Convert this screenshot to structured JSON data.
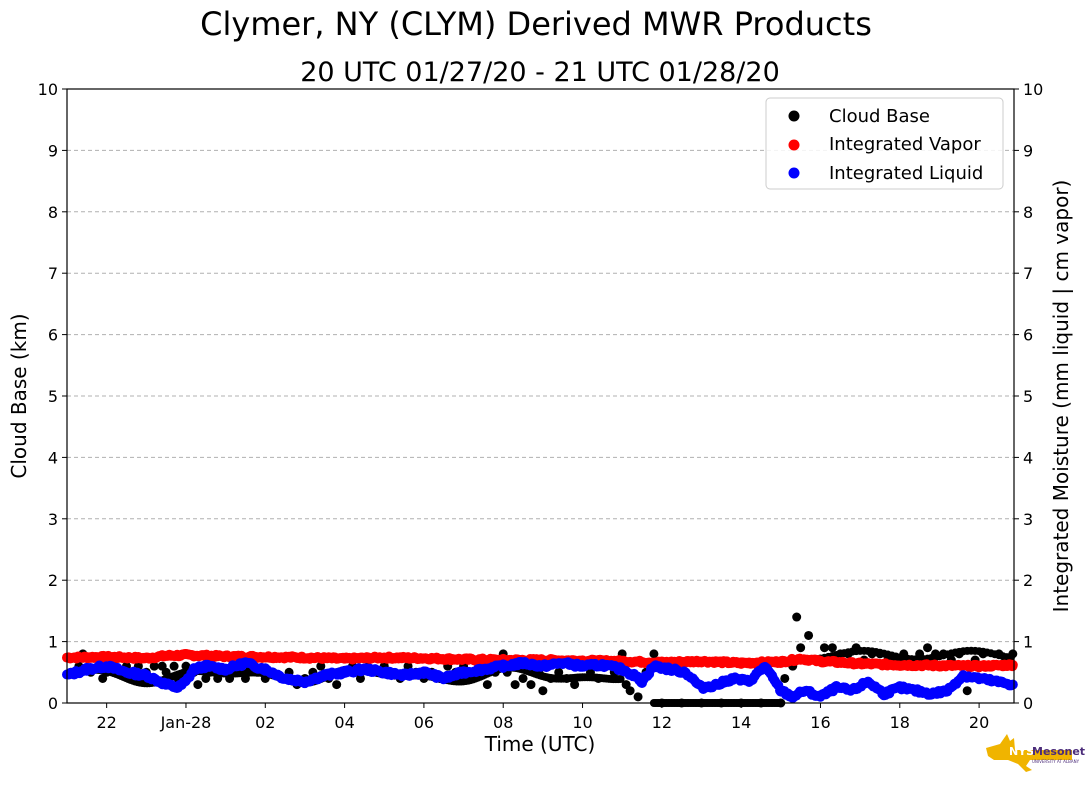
{
  "chart_data": {
    "type": "scatter",
    "title": "Clymer, NY (CLYM) Derived MWR Products",
    "subtitle": "20 UTC 01/27/20 - 21 UTC 01/28/20",
    "xlabel": "Time (UTC)",
    "ylabel": "Cloud Base (km)",
    "ylabel_right": "Integrated Moisture (mm liquid | cm vapor)",
    "xlim": [
      "2020-01-27T21:00Z",
      "2020-01-28T20:53Z"
    ],
    "ylim": [
      0,
      10
    ],
    "ylim_right": [
      0,
      10
    ],
    "x_tick_labels": [
      "22",
      "Jan-28",
      "02",
      "04",
      "06",
      "08",
      "10",
      "12",
      "14",
      "16",
      "18",
      "20"
    ],
    "y_tick_labels": [
      "0",
      "1",
      "2",
      "3",
      "4",
      "5",
      "6",
      "7",
      "8",
      "9",
      "10"
    ],
    "grid": "horizontal dashed",
    "legend_position": "top-right",
    "x_units": "hours UTC on 2020-01-28 (negative = 2020-01-27)",
    "series": [
      {
        "name": "Cloud Base",
        "color": "#000000",
        "axis": "left",
        "x": [
          -2.9,
          -2.7,
          -2.6,
          -2.4,
          -2.2,
          -2.1,
          -2.0,
          -1.8,
          -1.7,
          -1.5,
          -1.3,
          -1.2,
          -1.0,
          -0.8,
          -0.6,
          -0.5,
          -0.3,
          -0.2,
          0.0,
          0.2,
          0.3,
          0.5,
          0.6,
          0.8,
          1.0,
          1.1,
          1.3,
          1.5,
          1.6,
          1.8,
          2.0,
          2.2,
          2.4,
          2.6,
          2.8,
          3.0,
          3.2,
          3.4,
          3.6,
          3.8,
          4.0,
          4.2,
          4.4,
          4.6,
          4.8,
          5.0,
          5.2,
          5.4,
          5.6,
          5.8,
          6.0,
          6.2,
          6.4,
          6.6,
          6.8,
          7.0,
          7.2,
          7.4,
          7.6,
          7.8,
          8.0,
          8.1,
          8.3,
          8.5,
          8.7,
          8.9,
          9.0,
          9.2,
          9.4,
          9.6,
          9.8,
          10.0,
          10.2,
          10.4,
          10.6,
          10.8,
          11.0,
          11.1,
          11.2,
          11.4,
          11.6,
          11.8,
          12.0,
          12.5,
          13.0,
          13.5,
          14.0,
          14.5,
          15.0,
          15.1,
          15.3,
          15.4,
          15.5,
          15.7,
          15.9,
          16.1,
          16.3,
          16.5,
          16.7,
          16.9,
          17.1,
          17.3,
          17.5,
          17.7,
          17.9,
          18.1,
          18.3,
          18.5,
          18.7,
          18.9,
          19.1,
          19.3,
          19.5,
          19.7,
          19.9,
          20.1,
          20.3,
          20.5,
          20.7,
          20.85
        ],
        "y": [
          0.5,
          0.6,
          0.8,
          0.5,
          0.6,
          0.4,
          0.5,
          0.6,
          0.5,
          0.6,
          0.5,
          0.6,
          0.5,
          0.6,
          0.6,
          0.5,
          0.6,
          0.4,
          0.6,
          0.5,
          0.3,
          0.4,
          0.5,
          0.4,
          0.5,
          0.4,
          0.5,
          0.4,
          0.6,
          0.5,
          0.4,
          0.5,
          0.4,
          0.5,
          0.3,
          0.4,
          0.5,
          0.6,
          0.4,
          0.3,
          0.5,
          0.6,
          0.4,
          0.7,
          0.5,
          0.6,
          0.5,
          0.4,
          0.6,
          0.5,
          0.4,
          0.5,
          0.4,
          0.6,
          0.5,
          0.6,
          0.5,
          0.6,
          0.3,
          0.5,
          0.8,
          0.5,
          0.3,
          0.4,
          0.3,
          0.5,
          0.2,
          0.4,
          0.5,
          0.4,
          0.3,
          0.6,
          0.5,
          0.4,
          0.6,
          0.5,
          0.8,
          0.3,
          0.2,
          0.1,
          0.5,
          0.8,
          0.0,
          0.0,
          0.0,
          0.0,
          0.0,
          0.0,
          0.0,
          0.4,
          0.6,
          1.4,
          0.9,
          1.1,
          0.7,
          0.9,
          0.9,
          0.8,
          0.8,
          0.9,
          0.7,
          0.8,
          0.8,
          0.7,
          0.7,
          0.8,
          0.7,
          0.8,
          0.9,
          0.8,
          0.8,
          0.7,
          0.8,
          0.2,
          0.7,
          0.8,
          0.6,
          0.8,
          0.7,
          0.8
        ],
        "note": "Cloud base reads 0.0 km from about 11.8 to 15.0 UTC"
      },
      {
        "name": "Integrated Vapor",
        "color": "#ff0000",
        "axis": "right",
        "x": [
          -3.0,
          -2.0,
          -1.0,
          -0.5,
          0.0,
          1.0,
          2.0,
          3.0,
          4.0,
          5.0,
          6.0,
          7.0,
          8.0,
          9.0,
          10.0,
          11.0,
          12.0,
          13.0,
          14.0,
          15.0,
          15.5,
          16.0,
          17.0,
          18.0,
          19.0,
          20.0,
          20.85
        ],
        "y": [
          0.74,
          0.75,
          0.73,
          0.77,
          0.78,
          0.76,
          0.75,
          0.74,
          0.72,
          0.74,
          0.73,
          0.71,
          0.7,
          0.7,
          0.69,
          0.68,
          0.66,
          0.68,
          0.65,
          0.67,
          0.72,
          0.68,
          0.64,
          0.62,
          0.61,
          0.6,
          0.62
        ]
      },
      {
        "name": "Integrated Liquid",
        "color": "#0000ff",
        "axis": "right",
        "x": [
          -3.0,
          -2.5,
          -2.0,
          -1.5,
          -1.0,
          -0.5,
          -0.2,
          0.0,
          0.2,
          0.5,
          1.0,
          1.5,
          2.0,
          2.5,
          3.0,
          3.5,
          4.0,
          4.5,
          5.0,
          5.5,
          6.0,
          6.5,
          7.0,
          7.5,
          8.0,
          8.5,
          9.0,
          9.5,
          10.0,
          10.5,
          11.0,
          11.3,
          11.5,
          11.8,
          12.2,
          12.6,
          13.0,
          13.4,
          13.8,
          14.2,
          14.6,
          14.8,
          15.0,
          15.3,
          15.6,
          16.0,
          16.4,
          16.8,
          17.2,
          17.6,
          18.0,
          18.4,
          18.8,
          19.2,
          19.6,
          20.0,
          20.4,
          20.85
        ],
        "y": [
          0.45,
          0.55,
          0.6,
          0.5,
          0.45,
          0.3,
          0.25,
          0.35,
          0.55,
          0.6,
          0.55,
          0.65,
          0.55,
          0.4,
          0.35,
          0.45,
          0.5,
          0.55,
          0.5,
          0.45,
          0.5,
          0.4,
          0.5,
          0.55,
          0.6,
          0.65,
          0.6,
          0.65,
          0.6,
          0.62,
          0.55,
          0.45,
          0.35,
          0.6,
          0.55,
          0.5,
          0.25,
          0.3,
          0.4,
          0.35,
          0.6,
          0.4,
          0.2,
          0.1,
          0.2,
          0.1,
          0.25,
          0.2,
          0.35,
          0.15,
          0.25,
          0.2,
          0.15,
          0.2,
          0.45,
          0.4,
          0.35,
          0.3
        ]
      }
    ]
  },
  "logo": {
    "text_primary": "NYS Mesonet",
    "text_secondary": "UNIVERSITY AT ALBANY",
    "color_state": "#f0b400",
    "color_text": "#4b2c7a"
  }
}
